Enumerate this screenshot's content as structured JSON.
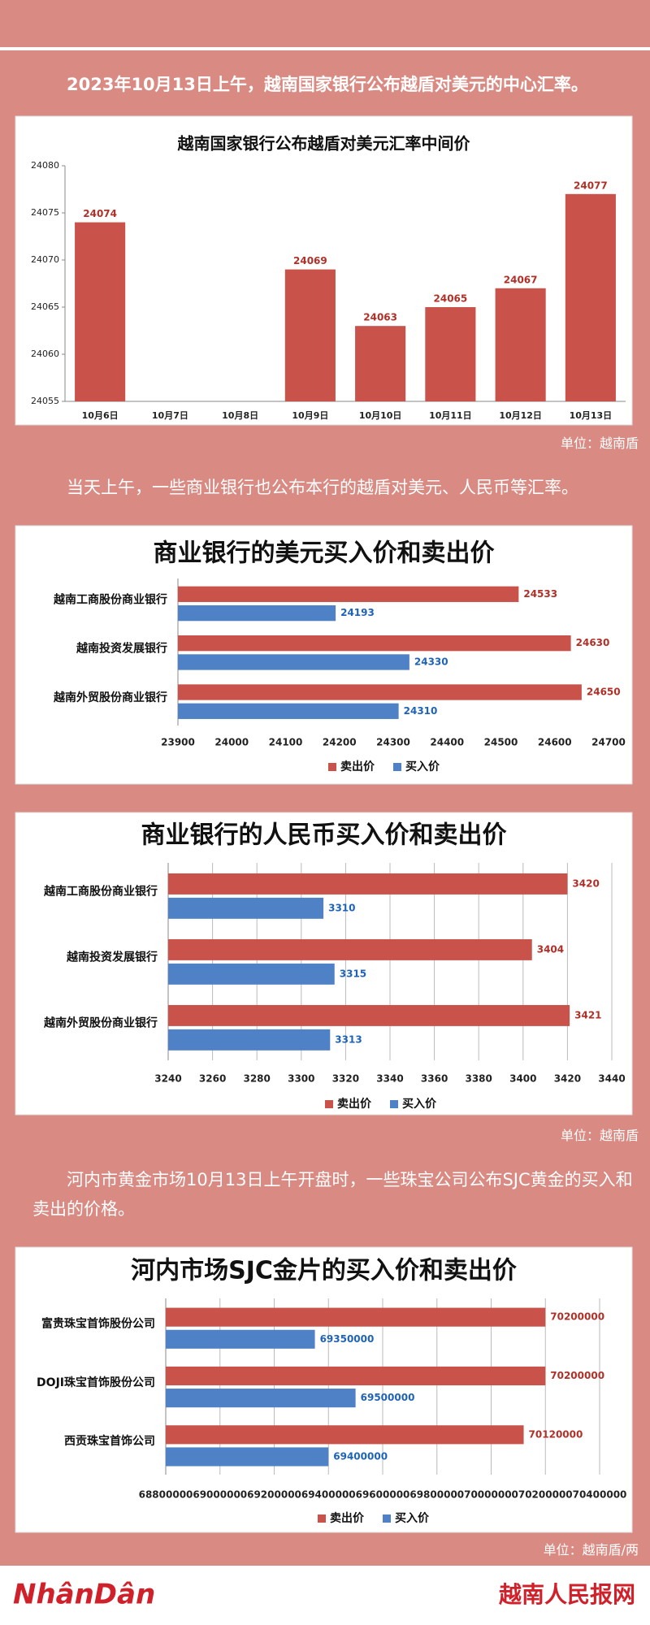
{
  "paragraphs": [
    "2023年10月13日上午，越南国家银行公布越盾对美元的中心汇率。",
    "当天上午，一些商业银行也公布本行的越盾对美元、人民币等汇率。",
    "河内市黄金市场10月13日上午开盘时，一些珠宝公司公布SJC黄金的买入和卖出的价格。"
  ],
  "units": [
    "单位：越南盾",
    "单位：越南盾",
    "单位：越南盾/两"
  ],
  "footer": {
    "logo": "NhânDân",
    "site": "越南人民报网"
  },
  "chart_data": [
    {
      "type": "bar",
      "title": "越南国家银行公布越盾对美元汇率中间价",
      "categories": [
        "10月6日",
        "10月7日",
        "10月8日",
        "10月9日",
        "10月10日",
        "10月11日",
        "10月12日",
        "10月13日"
      ],
      "values": [
        24074,
        null,
        null,
        24069,
        24063,
        24065,
        24067,
        24077
      ],
      "color": "#c9534b",
      "ylim": [
        24055,
        24080
      ],
      "yticks": [
        24055,
        24060,
        24065,
        24070,
        24075,
        24080
      ],
      "grid": false
    },
    {
      "type": "barh",
      "title": "商业银行的美元买入价和卖出价",
      "categories": [
        "越南工商股份商业银行",
        "越南投资发展银行",
        "越南外贸股份商业银行"
      ],
      "series": [
        {
          "name": "卖出价",
          "color": "#c9534b",
          "values": [
            24533,
            24630,
            24650
          ]
        },
        {
          "name": "买入价",
          "color": "#4f81c6",
          "values": [
            24193,
            24330,
            24310
          ]
        }
      ],
      "xlim": [
        23900,
        24700
      ],
      "xticks": [
        23900,
        24000,
        24100,
        24200,
        24300,
        24400,
        24500,
        24600,
        24700
      ],
      "grid": false,
      "legend": "bottom"
    },
    {
      "type": "barh",
      "title": "商业银行的人民币买入价和卖出价",
      "categories": [
        "越南工商股份商业银行",
        "越南投资发展银行",
        "越南外贸股份商业银行"
      ],
      "series": [
        {
          "name": "卖出价",
          "color": "#c9534b",
          "values": [
            3420,
            3404,
            3421
          ]
        },
        {
          "name": "买入价",
          "color": "#4f81c6",
          "values": [
            3310,
            3315,
            3313
          ]
        }
      ],
      "xlim": [
        3240,
        3440
      ],
      "xticks": [
        3240,
        3260,
        3280,
        3300,
        3320,
        3340,
        3360,
        3380,
        3400,
        3420,
        3440
      ],
      "grid": true,
      "legend": "bottom"
    },
    {
      "type": "barh",
      "title": "河内市场SJC金片的买入价和卖出价",
      "categories": [
        "富贵珠宝首饰股份公司",
        "DOJI珠宝首饰股份公司",
        "西贡珠宝首饰公司"
      ],
      "series": [
        {
          "name": "卖出价",
          "color": "#c9534b",
          "values": [
            70200000,
            70200000,
            70120000
          ]
        },
        {
          "name": "买入价",
          "color": "#4f81c6",
          "values": [
            69350000,
            69500000,
            69400000
          ]
        }
      ],
      "xlim": [
        68800000,
        70400000
      ],
      "xticks": [
        68800000,
        69000000,
        69200000,
        69400000,
        69600000,
        69800000,
        70000000,
        70200000,
        70400000
      ],
      "grid": true,
      "legend": "bottom"
    }
  ]
}
